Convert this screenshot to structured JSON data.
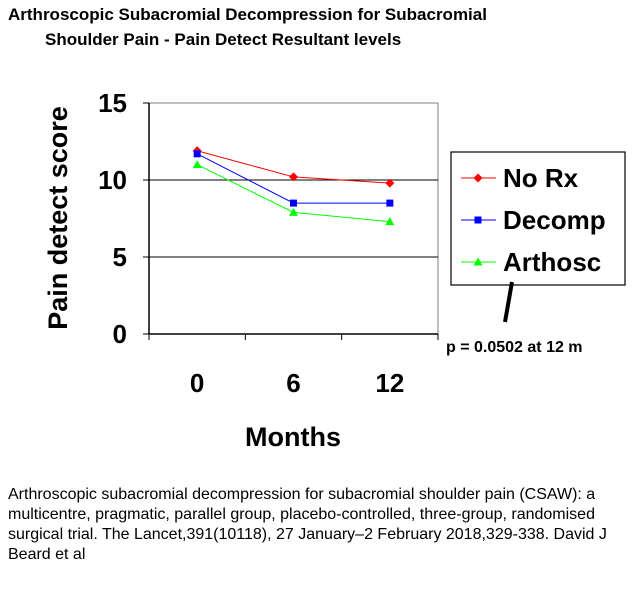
{
  "title_line1": "Arthroscopic Subacromial Decompression for Subacromial",
  "title_line2": "Shoulder Pain - Pain Detect Resultant levels",
  "annotation": "p = 0.0502 at 12 m",
  "citation": "Arthroscopic subacromial decompression for subacromial shoulder pain (CSAW): a multicentre, pragmatic, parallel group, placebo-controlled, three-group, randomised surgical trial. The Lancet,391(10118), 27 January–2 February 2018,329-338. David J Beard et al",
  "chart_data": {
    "type": "line",
    "title": "Arthroscopic Subacromial Decompression for Subacromial Shoulder Pain - Pain Detect Resultant levels",
    "xlabel": "Months",
    "ylabel": "Pain detect score",
    "x": [
      "0",
      "6",
      "12"
    ],
    "ylim": [
      0,
      15
    ],
    "yticks": [
      "0",
      "5",
      "10",
      "15"
    ],
    "grid": "horizontal",
    "legend_position": "right",
    "series": [
      {
        "name": "No Rx",
        "values": [
          11.9,
          10.2,
          9.8
        ],
        "color": "#ff0000",
        "marker": "diamond"
      },
      {
        "name": "Decomp",
        "values": [
          11.7,
          8.5,
          8.5
        ],
        "color": "#0000ff",
        "marker": "square"
      },
      {
        "name": "Arthosc",
        "values": [
          11.0,
          7.9,
          7.3
        ],
        "color": "#00ff00",
        "marker": "triangle"
      }
    ]
  }
}
